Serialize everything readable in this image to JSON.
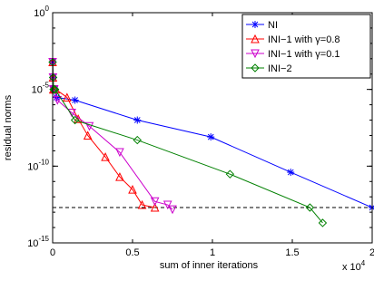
{
  "chart_data": {
    "type": "line",
    "xlabel": "sum of inner iterations",
    "ylabel": "residual norms",
    "x_multiplier_label": "x 10",
    "x_multiplier_exponent": "4",
    "xlim": [
      0,
      20000
    ],
    "ylim": [
      1e-15,
      1
    ],
    "y_scale": "log",
    "x_ticks": [
      {
        "value": 0,
        "label": "0"
      },
      {
        "value": 5000,
        "label": "0.5"
      },
      {
        "value": 10000,
        "label": "1"
      },
      {
        "value": 15000,
        "label": "1.5"
      },
      {
        "value": 20000,
        "label": "2"
      }
    ],
    "y_ticks": [
      {
        "value": 1,
        "base": "10",
        "exp": "0"
      },
      {
        "value": 1e-05,
        "base": "10",
        "exp": "-5"
      },
      {
        "value": 1e-10,
        "base": "10",
        "exp": "-10"
      },
      {
        "value": 1e-15,
        "base": "10",
        "exp": "-15"
      }
    ],
    "reference_line": {
      "y": 2e-13,
      "style": "dashed",
      "color": "#000000"
    },
    "legend_position": "top-right",
    "series": [
      {
        "name": "NI",
        "color": "#0000ff",
        "marker": "asterisk",
        "x": [
          0,
          30,
          60,
          90,
          120,
          150,
          250,
          1400,
          5300,
          9900,
          14900,
          20000
        ],
        "y": [
          0.0006,
          6e-05,
          1e-05,
          1e-05,
          1e-05,
          1e-05,
          3e-06,
          2e-06,
          1e-07,
          8e-09,
          4e-11,
          2e-13
        ]
      },
      {
        "name": "INI−1 with γ=0.8",
        "color": "#ff0000",
        "marker": "triangle-up",
        "x": [
          0,
          20,
          40,
          60,
          80,
          200,
          900,
          1600,
          2200,
          3300,
          4200,
          5000,
          5600,
          6400
        ],
        "y": [
          0.0006,
          6e-05,
          1e-05,
          1e-05,
          1e-05,
          1e-05,
          3e-06,
          1.2e-07,
          1e-08,
          4e-10,
          2e-11,
          3e-12,
          3e-13,
          2e-13
        ]
      },
      {
        "name": "INI−1 with γ=0.1",
        "color": "#cc00cc",
        "marker": "triangle-down",
        "x": [
          0,
          20,
          40,
          60,
          80,
          100,
          300,
          1200,
          2300,
          4200,
          6400,
          7200,
          7500
        ],
        "y": [
          0.0006,
          6e-05,
          1e-05,
          1e-05,
          1e-05,
          1e-05,
          2e-06,
          3e-07,
          4e-08,
          8e-10,
          5e-13,
          3e-13,
          1.5e-13
        ]
      },
      {
        "name": "INI−2",
        "color": "#008000",
        "marker": "diamond",
        "x": [
          0,
          30,
          60,
          90,
          120,
          150,
          1400,
          5300,
          11100,
          16100,
          16900
        ],
        "y": [
          0.0006,
          6e-05,
          1e-05,
          1e-05,
          1e-05,
          1e-05,
          1e-07,
          5e-09,
          3e-11,
          2e-13,
          2e-14
        ]
      }
    ]
  }
}
